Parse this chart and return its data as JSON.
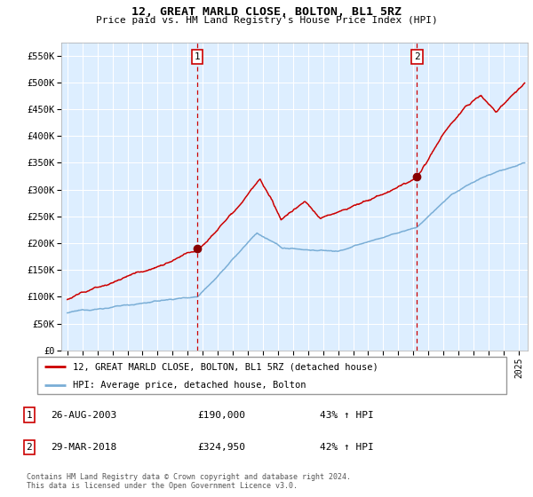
{
  "title": "12, GREAT MARLD CLOSE, BOLTON, BL1 5RZ",
  "subtitle": "Price paid vs. HM Land Registry's House Price Index (HPI)",
  "legend_line1": "12, GREAT MARLD CLOSE, BOLTON, BL1 5RZ (detached house)",
  "legend_line2": "HPI: Average price, detached house, Bolton",
  "footnote1": "Contains HM Land Registry data © Crown copyright and database right 2024.",
  "footnote2": "This data is licensed under the Open Government Licence v3.0.",
  "table": [
    {
      "num": "1",
      "date": "26-AUG-2003",
      "price": "£190,000",
      "change": "43% ↑ HPI"
    },
    {
      "num": "2",
      "date": "29-MAR-2018",
      "price": "£324,950",
      "change": "42% ↑ HPI"
    }
  ],
  "vline1_year": 2003.65,
  "vline2_year": 2018.24,
  "point1": [
    2003.65,
    190000
  ],
  "point2": [
    2018.24,
    324950
  ],
  "ylim": [
    0,
    575000
  ],
  "xlim_start": 1994.6,
  "xlim_end": 2025.6,
  "yticks": [
    0,
    50000,
    100000,
    150000,
    200000,
    250000,
    300000,
    350000,
    400000,
    450000,
    500000,
    550000
  ],
  "ytick_labels": [
    "£0",
    "£50K",
    "£100K",
    "£150K",
    "£200K",
    "£250K",
    "£300K",
    "£350K",
    "£400K",
    "£450K",
    "£500K",
    "£550K"
  ],
  "xticks": [
    1995,
    1996,
    1997,
    1998,
    1999,
    2000,
    2001,
    2002,
    2003,
    2004,
    2005,
    2006,
    2007,
    2008,
    2009,
    2010,
    2011,
    2012,
    2013,
    2014,
    2015,
    2016,
    2017,
    2018,
    2019,
    2020,
    2021,
    2022,
    2023,
    2024,
    2025
  ],
  "red_color": "#CC0000",
  "blue_color": "#7aaed6",
  "bg_color": "#ddeeff",
  "grid_color": "#ffffff",
  "vline_color": "#CC0000",
  "point_color": "#880000",
  "title_fontsize": 9.5,
  "subtitle_fontsize": 8.0
}
